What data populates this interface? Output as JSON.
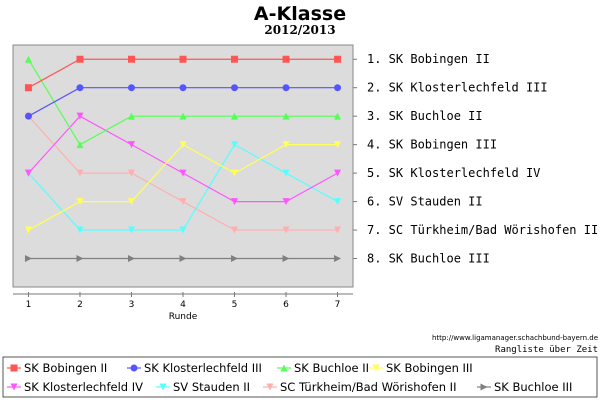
{
  "title": "A-Klasse",
  "subtitle": "2012/2013",
  "footer_url": "http://www.ligamanager.schachbund-bayern.de",
  "footer_caption": "Rangliste über Zeit",
  "ranking_labels": [
    "1. SK Bobingen II",
    "2. SK Klosterlechfeld III",
    "3. SK Buchloe II",
    "4. SK Bobingen III",
    "5. SK Klosterlechfeld IV",
    "6. SV Stauden II",
    "7. SC Türkheim/Bad Wörishofen II",
    "8. SK Buchloe III"
  ],
  "chart_data": {
    "type": "line",
    "title": "A-Klasse",
    "subtitle": "2012/2013",
    "xlabel": "Runde",
    "ylabel": "",
    "x": [
      1,
      2,
      3,
      4,
      5,
      6,
      7
    ],
    "xlim": [
      0.7,
      7.3
    ],
    "ylim": [
      9,
      0.5
    ],
    "y_inverted": true,
    "grid": false,
    "plot_background": "#dcdcdc",
    "legend_position": "bottom",
    "series": [
      {
        "name": "SK Bobingen II",
        "color": "#ff5555",
        "marker": "square",
        "values": [
          2,
          1,
          1,
          1,
          1,
          1,
          1
        ]
      },
      {
        "name": "SK Klosterlechfeld III",
        "color": "#5555ff",
        "marker": "circle",
        "values": [
          3,
          2,
          2,
          2,
          2,
          2,
          2
        ]
      },
      {
        "name": "SK Buchloe II",
        "color": "#55ff55",
        "marker": "triangle-up",
        "values": [
          1,
          4,
          3,
          3,
          3,
          3,
          3
        ]
      },
      {
        "name": "SK Bobingen III",
        "color": "#ffff55",
        "marker": "triangle-down",
        "values": [
          7,
          6,
          6,
          4,
          5,
          4,
          4
        ]
      },
      {
        "name": "SK Klosterlechfeld IV",
        "color": "#ff55ff",
        "marker": "triangle-down",
        "values": [
          5,
          3,
          4,
          5,
          6,
          6,
          5
        ]
      },
      {
        "name": "SV Stauden II",
        "color": "#55ffff",
        "marker": "triangle-down",
        "values": [
          5,
          7,
          7,
          7,
          4,
          5,
          6
        ]
      },
      {
        "name": "SC Türkheim/Bad Wörishofen II",
        "color": "#ffafaf",
        "marker": "triangle-down",
        "values": [
          3,
          5,
          5,
          6,
          7,
          7,
          7
        ]
      },
      {
        "name": "SK Buchloe III",
        "color": "#808080",
        "marker": "triangle-right",
        "values": [
          8,
          8,
          8,
          8,
          8,
          8,
          8
        ]
      }
    ]
  }
}
